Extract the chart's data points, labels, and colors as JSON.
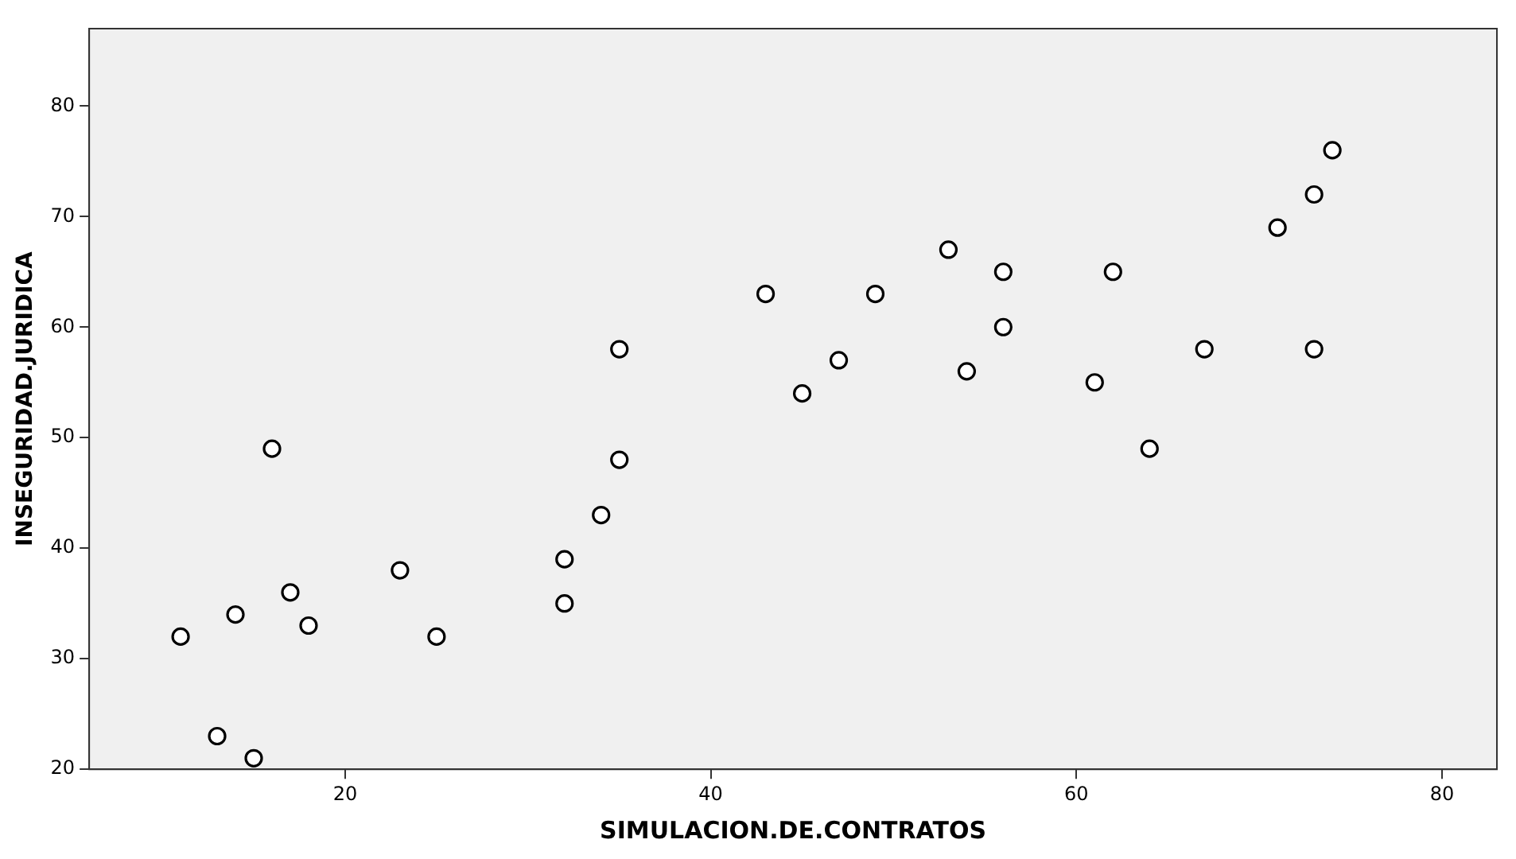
{
  "chart_data": {
    "type": "scatter",
    "xlabel": "SIMULACION.DE.CONTRATOS",
    "ylabel": "INSEGURIDAD.JURIDICA",
    "x": [
      11,
      13,
      14,
      15,
      16,
      17,
      18,
      23,
      25,
      32,
      32,
      34,
      35,
      35,
      43,
      45,
      47,
      49,
      53,
      54,
      56,
      56,
      61,
      62,
      64,
      67,
      71,
      73,
      73,
      74
    ],
    "values": [
      32,
      23,
      34,
      21,
      49,
      36,
      33,
      38,
      32,
      39,
      35,
      43,
      58,
      48,
      63,
      54,
      57,
      63,
      67,
      56,
      65,
      60,
      55,
      65,
      49,
      58,
      69,
      72,
      58,
      76
    ],
    "color": "#000000",
    "marker": "circle",
    "grid": false,
    "legend": false,
    "xlim": [
      6,
      83
    ],
    "xticks": [
      20,
      40,
      60,
      80
    ],
    "ylim": [
      20,
      87
    ],
    "yticks": [
      20,
      30,
      40,
      50,
      60,
      70,
      80
    ]
  }
}
